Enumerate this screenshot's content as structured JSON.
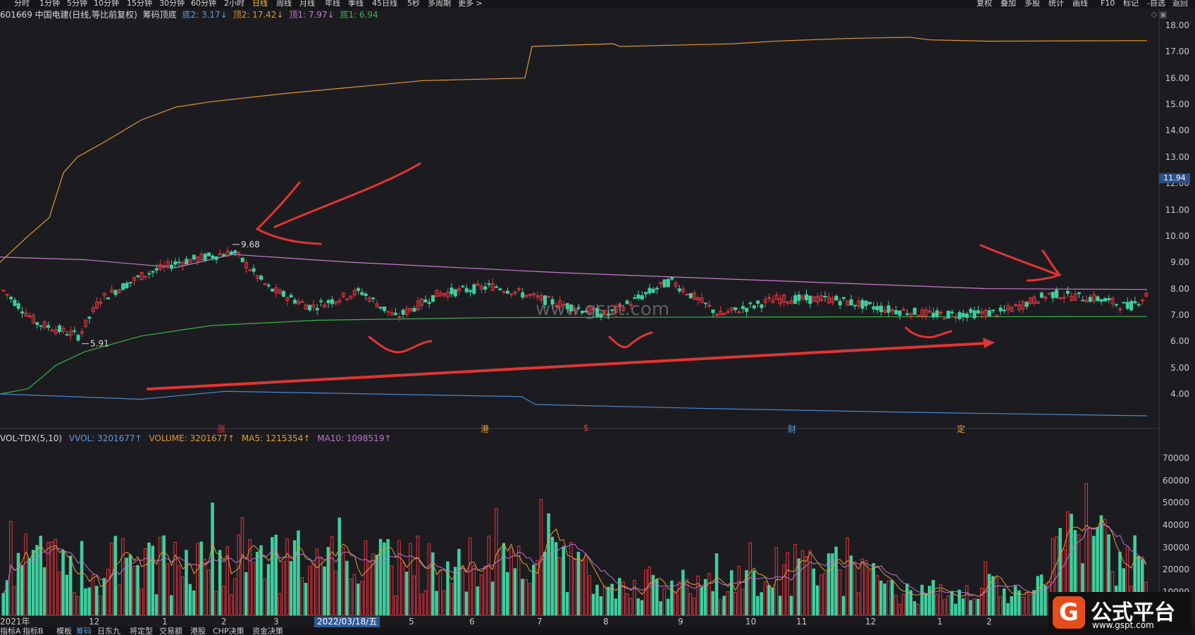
{
  "toolbar": {
    "periods": [
      "分时",
      "1分钟",
      "5分钟",
      "10分钟",
      "15分钟",
      "30分钟",
      "60分钟",
      "2小时",
      "日线",
      "周线",
      "月线",
      "年线",
      "季线",
      "45日线",
      "5秒",
      "多周期",
      "更多 >"
    ],
    "active_period": "日线",
    "right_buttons": [
      "复权",
      "叠加",
      "多股",
      "统计",
      "画线",
      "F10",
      "标记",
      "-自选",
      "返回"
    ]
  },
  "info": {
    "stock": "601669 中国电建(日线,等比前复权)",
    "indicator": "筹码顶底",
    "di2": "底2: 3.17↓",
    "ding2": "顶2: 17.42↓",
    "ding1": "顶1: 7.97↓",
    "di1": "底1: 6.94"
  },
  "price_axis": [
    "18.00",
    "17.00",
    "16.00",
    "15.00",
    "14.00",
    "13.00",
    "12.00",
    "11.00",
    "10.00",
    "9.00",
    "8.00",
    "7.00",
    "6.00",
    "5.00",
    "4.00"
  ],
  "current_price": "11.94",
  "annotations": {
    "high": "9.68",
    "low": "5.91"
  },
  "markers": [
    "涨",
    "港",
    "$",
    "财",
    "定"
  ],
  "watermark": "www.gspt.com",
  "volume": {
    "title": "VOL-TDX(5,10)",
    "vvol": "VVOL: 3201677↑",
    "volume": "VOLUME: 3201677↑",
    "ma5": "MA5: 1215354↑",
    "ma10": "MA10: 1098519↑",
    "axis": [
      "70000",
      "60000",
      "50000",
      "40000",
      "30000",
      "20000",
      "10000"
    ]
  },
  "time_axis": {
    "labels": [
      "2021年",
      "12",
      "1",
      "2",
      "3",
      "2022/03/18/五",
      "5",
      "6",
      "7",
      "8",
      "9",
      "10",
      "11",
      "12",
      "1",
      "2"
    ],
    "highlight": "2022/03/18/五"
  },
  "bottom_tabs": [
    "指标A",
    "指标B",
    "模板",
    "筹码",
    "日东九",
    "将定型",
    "交易额",
    "港股",
    "CHP决策",
    "资金决策"
  ],
  "active_tab": "筹码",
  "logo": {
    "glyph": "G",
    "name": "公式平台",
    "url": "www.gspt.com"
  },
  "colors": {
    "up": "#e8343f",
    "down": "#3fcf9e",
    "ding2_line": "#e0983a",
    "ding1_line": "#c77bd0",
    "di1_line": "#3ab34a",
    "di2_line": "#4a86d0",
    "ma5": "#e0a030",
    "ma10": "#c070d0",
    "arrows": "#e03535"
  }
}
